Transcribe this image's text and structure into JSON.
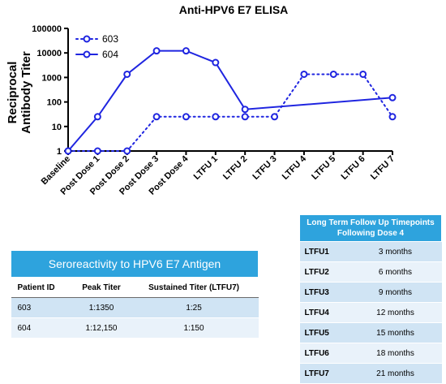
{
  "chart_data": {
    "type": "line",
    "title": "Anti-HPV6 E7 ELISA",
    "ylabel": "Reciprocal Antibody Titer",
    "xlabel": "",
    "yscale": "log",
    "ylim": [
      1,
      100000
    ],
    "yticks": [
      "1",
      "10",
      "100",
      "1000",
      "10000",
      "100000"
    ],
    "categories": [
      "Baseline",
      "Post Dose 1",
      "Post Dose 2",
      "Post Dose 3",
      "Post Dose 4",
      "LTFU 1",
      "LTFU 2",
      "LTFU 3",
      "LTFU 4",
      "LTFU 5",
      "LTFU 6",
      "LTFU 7"
    ],
    "legend_position": "top-left",
    "series": [
      {
        "name": "603",
        "style": "dotted",
        "color": "#1f25e0",
        "points": [
          [
            0,
            1
          ],
          [
            1,
            1
          ],
          [
            2,
            1
          ],
          [
            3,
            25
          ],
          [
            4,
            25
          ],
          [
            5,
            25
          ],
          [
            6,
            25
          ],
          [
            7,
            25
          ],
          [
            8,
            1350
          ],
          [
            9,
            1350
          ],
          [
            10,
            1350
          ],
          [
            11,
            25
          ]
        ]
      },
      {
        "name": "604",
        "style": "solid",
        "color": "#1f25e0",
        "points": [
          [
            0,
            1
          ],
          [
            1,
            25
          ],
          [
            2,
            1350
          ],
          [
            3,
            12150
          ],
          [
            4,
            12150
          ],
          [
            5,
            4050
          ],
          [
            6,
            50
          ],
          [
            11,
            150
          ]
        ]
      }
    ]
  },
  "sero_table": {
    "title": "Seroreactivity to HPV6 E7 Antigen",
    "headers": [
      "Patient ID",
      "Peak Titer",
      "Sustained Titer (LTFU7)"
    ],
    "rows": [
      [
        "603",
        "1:1350",
        "1:25"
      ],
      [
        "604",
        "1:12,150",
        "1:150"
      ]
    ]
  },
  "ltfu_table": {
    "title_line1": "Long Term Follow Up Timepoints",
    "title_line2": "Following Dose 4",
    "rows": [
      [
        "LTFU1",
        "3 months"
      ],
      [
        "LTFU2",
        "6 months"
      ],
      [
        "LTFU3",
        "9 months"
      ],
      [
        "LTFU4",
        "12 months"
      ],
      [
        "LTFU5",
        "15 months"
      ],
      [
        "LTFU6",
        "18 months"
      ],
      [
        "LTFU7",
        "21 months"
      ]
    ]
  },
  "colors": {
    "series": "#1f25e0",
    "table_header": "#2ea3dd",
    "row_dark": "#d0e4f4",
    "row_light": "#e9f2fa"
  }
}
